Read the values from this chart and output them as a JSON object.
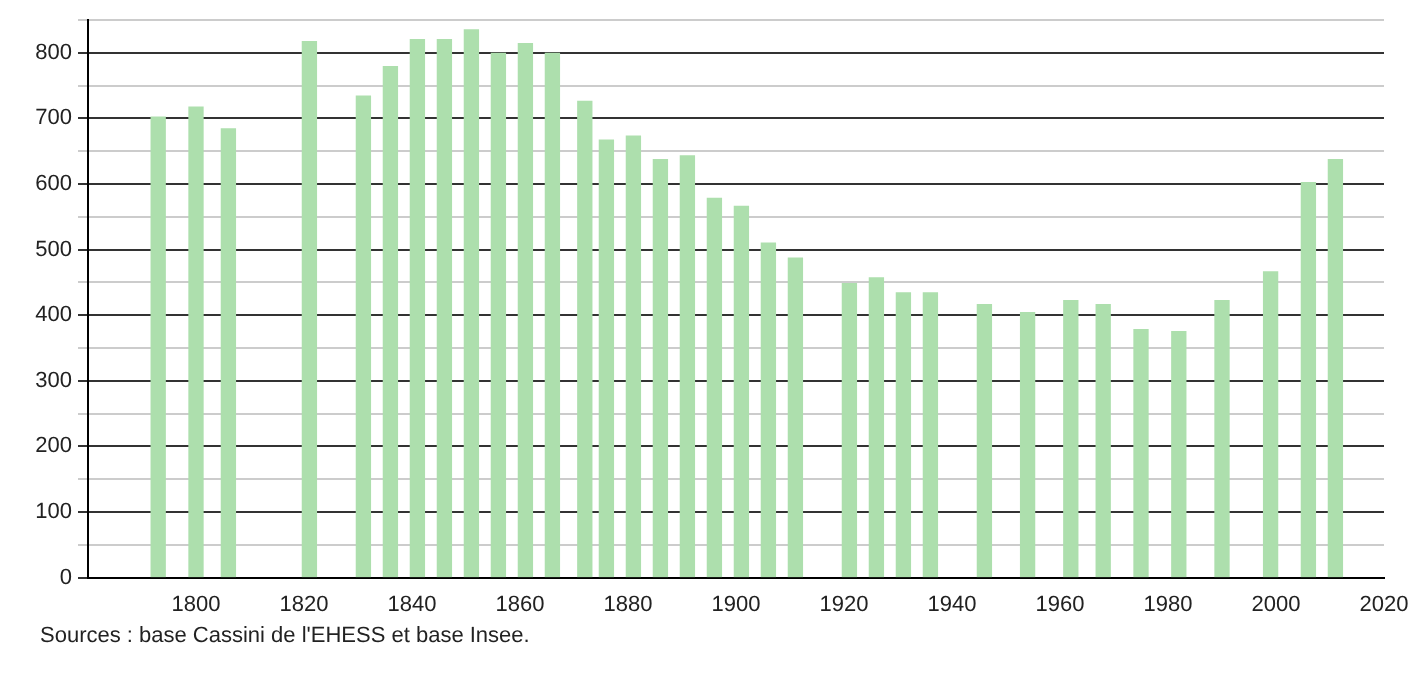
{
  "chart_data": {
    "type": "bar",
    "color": "#addfad",
    "x": [
      1793,
      1800,
      1806,
      1821,
      1831,
      1836,
      1841,
      1846,
      1851,
      1856,
      1861,
      1866,
      1872,
      1876,
      1881,
      1886,
      1891,
      1896,
      1901,
      1906,
      1911,
      1921,
      1926,
      1931,
      1936,
      1946,
      1954,
      1962,
      1968,
      1975,
      1982,
      1990,
      1999,
      2006,
      2011
    ],
    "values": [
      702,
      717,
      684,
      817,
      734,
      779,
      820,
      820,
      835,
      799,
      814,
      799,
      726,
      667,
      673,
      637,
      643,
      578,
      566,
      510,
      487,
      448,
      457,
      434,
      434,
      416,
      404,
      422,
      416,
      378,
      375,
      422,
      466,
      602,
      637
    ],
    "xlim": [
      1780,
      2020
    ],
    "xticks": [
      1800,
      1820,
      1840,
      1860,
      1880,
      1900,
      1920,
      1940,
      1960,
      1980,
      2000,
      2020
    ],
    "ylim": [
      0,
      850
    ],
    "yticks": [
      0,
      {
        "value": 50,
        "label": null
      },
      100,
      {
        "value": 150,
        "label": null
      },
      200,
      {
        "value": 250,
        "label": null
      },
      300,
      {
        "value": 350,
        "label": null
      },
      400,
      {
        "value": 450,
        "label": null
      },
      500,
      {
        "value": 550,
        "label": null
      },
      600,
      {
        "value": 650,
        "label": null
      },
      700,
      {
        "value": 750,
        "label": null
      },
      800,
      {
        "value": 850,
        "label": null
      }
    ],
    "grid": "y",
    "annotations": [
      "Sources : base Cassini de l'EHESS et base Insee."
    ]
  }
}
